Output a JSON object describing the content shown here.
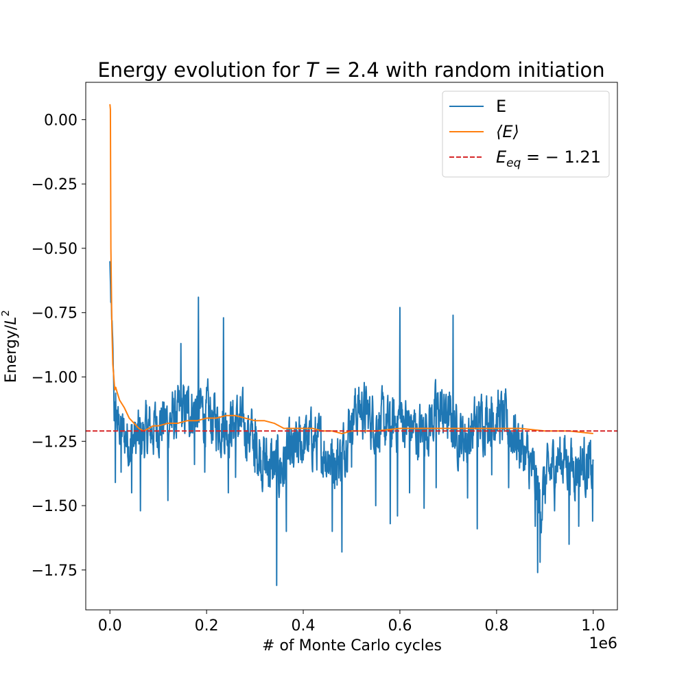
{
  "chart_data": {
    "type": "line",
    "title_prefix": "Energy evolution for ",
    "title_var": "T",
    "title_suffix": " = 2.4 with random initiation",
    "xlabel": "# of Monte Carlo cycles",
    "ylabel_main": "Energy/",
    "ylabel_var": "L",
    "ylabel_exp": "2",
    "x_offset_label": "1e6",
    "xlim": [
      -0.05,
      1.05
    ],
    "ylim": [
      -1.905,
      0.145
    ],
    "xticks": [
      0.0,
      0.2,
      0.4,
      0.6,
      0.8,
      1.0
    ],
    "xtick_labels": [
      "0.0",
      "0.2",
      "0.4",
      "0.6",
      "0.8",
      "1.0"
    ],
    "yticks": [
      0.0,
      -0.25,
      -0.5,
      -0.75,
      -1.0,
      -1.25,
      -1.5,
      -1.75
    ],
    "ytick_labels": [
      "0.00",
      "−0.25",
      "−0.50",
      "−0.75",
      "−1.00",
      "−1.25",
      "−1.50",
      "−1.75"
    ],
    "legend_position": "top-right",
    "colors": {
      "E": "#1f77b4",
      "mean": "#ff7f0e",
      "eq": "#d62728"
    },
    "series": [
      {
        "name": "E",
        "style": "solid",
        "x": [
          0.0,
          0.002,
          0.004,
          0.006,
          0.008,
          0.012,
          0.016,
          0.02,
          0.03,
          0.045,
          0.06,
          0.075,
          0.09,
          0.1,
          0.12,
          0.14,
          0.16,
          0.18,
          0.2,
          0.22,
          0.24,
          0.26,
          0.28,
          0.3,
          0.32,
          0.345,
          0.36,
          0.38,
          0.4,
          0.42,
          0.44,
          0.46,
          0.48,
          0.5,
          0.52,
          0.54,
          0.56,
          0.58,
          0.6,
          0.62,
          0.64,
          0.66,
          0.68,
          0.7,
          0.72,
          0.74,
          0.76,
          0.78,
          0.8,
          0.82,
          0.84,
          0.86,
          0.88,
          0.89,
          0.9,
          0.92,
          0.94,
          0.96,
          0.98,
          1.0
        ],
        "y": [
          -0.54,
          -0.71,
          -0.78,
          -0.92,
          -1.05,
          -1.13,
          -1.18,
          -1.2,
          -1.23,
          -1.25,
          -1.24,
          -1.22,
          -1.2,
          -1.18,
          -1.17,
          -1.16,
          -1.13,
          -1.12,
          -1.15,
          -1.17,
          -1.19,
          -1.17,
          -1.2,
          -1.25,
          -1.33,
          -1.36,
          -1.34,
          -1.3,
          -1.25,
          -1.24,
          -1.28,
          -1.32,
          -1.31,
          -1.14,
          -1.12,
          -1.16,
          -1.18,
          -1.2,
          -1.16,
          -1.19,
          -1.22,
          -1.18,
          -1.13,
          -1.16,
          -1.22,
          -1.24,
          -1.18,
          -1.15,
          -1.14,
          -1.19,
          -1.23,
          -1.3,
          -1.4,
          -1.5,
          -1.42,
          -1.33,
          -1.31,
          -1.35,
          -1.33,
          -1.38
        ],
        "noise_amp": [
          0.02,
          0.04,
          0.05,
          0.06,
          0.07,
          0.08,
          0.09,
          0.1,
          0.11,
          0.12,
          0.12,
          0.12,
          0.12,
          0.12,
          0.12,
          0.12,
          0.12,
          0.12,
          0.12,
          0.12,
          0.12,
          0.12,
          0.12,
          0.12,
          0.13,
          0.14,
          0.14,
          0.13,
          0.12,
          0.12,
          0.12,
          0.12,
          0.12,
          0.12,
          0.12,
          0.12,
          0.12,
          0.12,
          0.12,
          0.12,
          0.12,
          0.12,
          0.12,
          0.12,
          0.12,
          0.12,
          0.12,
          0.12,
          0.12,
          0.12,
          0.12,
          0.12,
          0.12,
          0.13,
          0.12,
          0.12,
          0.12,
          0.12,
          0.12,
          0.12
        ],
        "spikes": [
          [
            0.0,
            -0.55
          ],
          [
            0.002,
            -0.71
          ],
          [
            0.009,
            -1.17
          ],
          [
            0.011,
            -1.41
          ],
          [
            0.023,
            -1.37
          ],
          [
            0.045,
            -1.45
          ],
          [
            0.063,
            -1.52
          ],
          [
            0.12,
            -1.48
          ],
          [
            0.147,
            -0.87
          ],
          [
            0.175,
            -1.34
          ],
          [
            0.183,
            -0.69
          ],
          [
            0.196,
            -1.37
          ],
          [
            0.235,
            -0.77
          ],
          [
            0.245,
            -1.45
          ],
          [
            0.26,
            -1.39
          ],
          [
            0.3,
            -1.37
          ],
          [
            0.345,
            -1.81
          ],
          [
            0.365,
            -1.6
          ],
          [
            0.38,
            -1.35
          ],
          [
            0.46,
            -1.6
          ],
          [
            0.47,
            -1.42
          ],
          [
            0.48,
            -1.68
          ],
          [
            0.5,
            -1.35
          ],
          [
            0.55,
            -1.5
          ],
          [
            0.58,
            -1.57
          ],
          [
            0.595,
            -1.54
          ],
          [
            0.6,
            -0.73
          ],
          [
            0.62,
            -1.45
          ],
          [
            0.65,
            -1.51
          ],
          [
            0.675,
            -1.43
          ],
          [
            0.71,
            -0.76
          ],
          [
            0.74,
            -1.47
          ],
          [
            0.76,
            -1.59
          ],
          [
            0.79,
            -1.38
          ],
          [
            0.825,
            -1.43
          ],
          [
            0.86,
            -1.34
          ],
          [
            0.88,
            -1.58
          ],
          [
            0.885,
            -1.76
          ],
          [
            0.89,
            -1.72
          ],
          [
            0.92,
            -1.52
          ],
          [
            0.95,
            -1.65
          ],
          [
            0.97,
            -1.58
          ],
          [
            0.985,
            -1.44
          ],
          [
            0.995,
            -1.38
          ],
          [
            0.999,
            -1.56
          ]
        ]
      },
      {
        "name": "⟨E⟩",
        "style": "solid",
        "x": [
          0.0,
          0.001,
          0.002,
          0.004,
          0.006,
          0.008,
          0.01,
          0.012,
          0.015,
          0.02,
          0.03,
          0.04,
          0.05,
          0.06,
          0.07,
          0.08,
          0.09,
          0.1,
          0.12,
          0.14,
          0.16,
          0.18,
          0.2,
          0.22,
          0.24,
          0.26,
          0.28,
          0.3,
          0.32,
          0.34,
          0.36,
          0.38,
          0.4,
          0.42,
          0.44,
          0.46,
          0.48,
          0.5,
          0.55,
          0.6,
          0.65,
          0.7,
          0.75,
          0.8,
          0.85,
          0.9,
          0.95,
          1.0
        ],
        "y": [
          0.06,
          0.04,
          -0.5,
          -0.8,
          -0.95,
          -1.0,
          -1.05,
          -1.04,
          -1.06,
          -1.09,
          -1.12,
          -1.16,
          -1.18,
          -1.2,
          -1.21,
          -1.2,
          -1.19,
          -1.19,
          -1.18,
          -1.18,
          -1.17,
          -1.17,
          -1.16,
          -1.16,
          -1.15,
          -1.15,
          -1.16,
          -1.17,
          -1.17,
          -1.18,
          -1.2,
          -1.2,
          -1.2,
          -1.2,
          -1.21,
          -1.21,
          -1.22,
          -1.21,
          -1.21,
          -1.2,
          -1.2,
          -1.2,
          -1.2,
          -1.2,
          -1.2,
          -1.21,
          -1.21,
          -1.22
        ]
      },
      {
        "name": "E_eq = −1.21",
        "style": "dashed",
        "value": -1.21
      }
    ],
    "legend": [
      {
        "key": "E",
        "text": "E"
      },
      {
        "key": "mean",
        "text": "⟨E⟩"
      },
      {
        "key": "eq",
        "text_var": "E",
        "text_sub": "eq",
        "text_rest": " = − 1.21"
      }
    ]
  }
}
